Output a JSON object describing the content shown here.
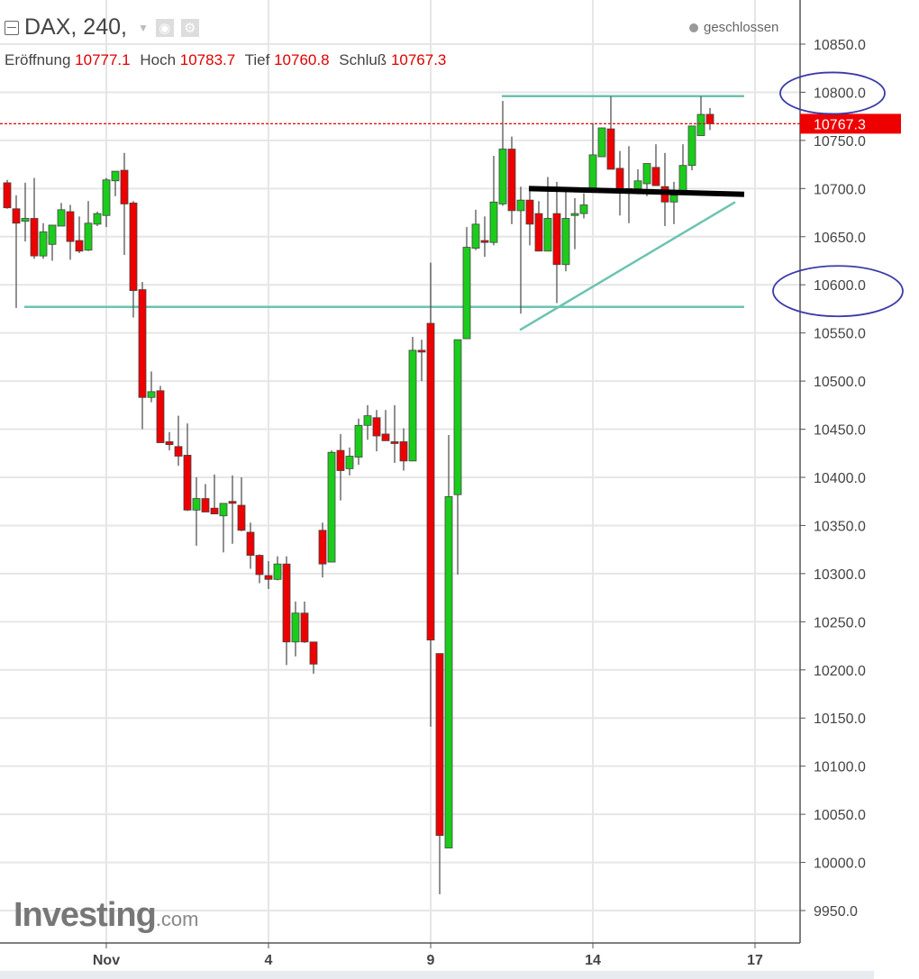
{
  "header": {
    "symbol_title": "DAX, 240,",
    "status": "geschlossen",
    "ohlc": [
      {
        "label": "Eröffnung",
        "value": "10777.1"
      },
      {
        "label": "Hoch",
        "value": "10783.7"
      },
      {
        "label": "Tief",
        "value": "10760.8"
      },
      {
        "label": "Schluß",
        "value": "10767.3"
      }
    ],
    "icons": [
      "collapse-icon",
      "dropdown-icon",
      "eye-icon",
      "gear-icon"
    ]
  },
  "watermark": "Investing.com",
  "colors": {
    "up": "#1ccc1c",
    "down": "#ee0000",
    "trendline": "#6cc3b0",
    "support": "#000000",
    "highlight": "#3a3aa8",
    "last_price": "#ee0000"
  },
  "chart_data": {
    "type": "candlestick",
    "title": "",
    "xlabel": "",
    "ylabel": "",
    "ylim": [
      9930,
      10890
    ],
    "grid": true,
    "yticks": [
      "10850.0",
      "10800.0",
      "10750.0",
      "10700.0",
      "10650.0",
      "10600.0",
      "10550.0",
      "10500.0",
      "10450.0",
      "10400.0",
      "10350.0",
      "10300.0",
      "10250.0",
      "10200.0",
      "10150.0",
      "10100.0",
      "10050.0",
      "10000.0",
      "9950.0"
    ],
    "xticks": [
      {
        "label": "Nov",
        "bar": 11
      },
      {
        "label": "4",
        "bar": 29
      },
      {
        "label": "9",
        "bar": 47
      },
      {
        "label": "14",
        "bar": 65
      },
      {
        "label": "17",
        "bar": 83
      }
    ],
    "last_price": "10767.3",
    "candles": [
      [
        10706,
        10709,
        10679,
        10680
      ],
      [
        10679,
        10693,
        10576,
        10664
      ],
      [
        10666,
        10706,
        10645,
        10669
      ],
      [
        10669,
        10711,
        10627,
        10630
      ],
      [
        10630,
        10664,
        10627,
        10655
      ],
      [
        10642,
        10662,
        10625,
        10662
      ],
      [
        10661,
        10685,
        10661,
        10678
      ],
      [
        10676,
        10683,
        10626,
        10645
      ],
      [
        10646,
        10671,
        10633,
        10635
      ],
      [
        10636,
        10687,
        10635,
        10664
      ],
      [
        10663,
        10676,
        10661,
        10674
      ],
      [
        10672,
        10711,
        10660,
        10709
      ],
      [
        10708,
        10718,
        10692,
        10718
      ],
      [
        10719,
        10737,
        10631,
        10684
      ],
      [
        10685,
        10687,
        10566,
        10594
      ],
      [
        10595,
        10603,
        10450,
        10483
      ],
      [
        10483,
        10510,
        10478,
        10489
      ],
      [
        10490,
        10495,
        10436,
        10436
      ],
      [
        10437,
        10447,
        10428,
        10434
      ],
      [
        10432,
        10464,
        10412,
        10422
      ],
      [
        10423,
        10456,
        10365,
        10366
      ],
      [
        10366,
        10400,
        10329,
        10378
      ],
      [
        10378,
        10393,
        10364,
        10364
      ],
      [
        10368,
        10403,
        10362,
        10362
      ],
      [
        10360,
        10373,
        10322,
        10373
      ],
      [
        10375,
        10402,
        10331,
        10373
      ],
      [
        10371,
        10400,
        10344,
        10345
      ],
      [
        10343,
        10353,
        10305,
        10319
      ],
      [
        10319,
        10320,
        10290,
        10299
      ],
      [
        10298,
        10313,
        10284,
        10294
      ],
      [
        10294,
        10318,
        10293,
        10310
      ],
      [
        10310,
        10318,
        10205,
        10229
      ],
      [
        10229,
        10271,
        10214,
        10259
      ],
      [
        10259,
        10271,
        10228,
        10229
      ],
      [
        10229,
        10229,
        10196,
        10206
      ],
      [
        10345,
        10353,
        10296,
        10310
      ],
      [
        10312,
        10428,
        10312,
        10426
      ],
      [
        10428,
        10445,
        10376,
        10407
      ],
      [
        10409,
        10431,
        10402,
        10422
      ],
      [
        10421,
        10461,
        10413,
        10454
      ],
      [
        10454,
        10475,
        10439,
        10464
      ],
      [
        10462,
        10470,
        10427,
        10443
      ],
      [
        10445,
        10470,
        10438,
        10438
      ],
      [
        10437,
        10475,
        10415,
        10436
      ],
      [
        10437,
        10451,
        10407,
        10417
      ],
      [
        10417,
        10546,
        10417,
        10532
      ],
      [
        10532,
        10543,
        10500,
        10531
      ],
      [
        10560,
        10623,
        10141,
        10231
      ],
      [
        10217,
        10217,
        9967,
        10028
      ],
      [
        10015,
        10444,
        10015,
        10380
      ],
      [
        10382,
        10543,
        10299,
        10543
      ],
      [
        10544,
        10660,
        10544,
        10639
      ],
      [
        10638,
        10678,
        10636,
        10663
      ],
      [
        10646,
        10671,
        10629,
        10644
      ],
      [
        10644,
        10734,
        10641,
        10686
      ],
      [
        10684,
        10791,
        10682,
        10741
      ],
      [
        10741,
        10754,
        10663,
        10677
      ],
      [
        10677,
        10702,
        10570,
        10688
      ],
      [
        10688,
        10697,
        10641,
        10663
      ],
      [
        10674,
        10687,
        10635,
        10635
      ],
      [
        10635,
        10712,
        10635,
        10669
      ],
      [
        10674,
        10707,
        10581,
        10621
      ],
      [
        10621,
        10697,
        10614,
        10669
      ],
      [
        10672,
        10690,
        10637,
        10674
      ],
      [
        10674,
        10695,
        10669,
        10683
      ],
      [
        10700,
        10768,
        10700,
        10735
      ],
      [
        10733,
        10763,
        10733,
        10763
      ],
      [
        10762,
        10796,
        10720,
        10720
      ],
      [
        10721,
        10739,
        10672,
        10698
      ],
      [
        10698,
        10744,
        10664,
        10700
      ],
      [
        10700,
        10720,
        10694,
        10708
      ],
      [
        10705,
        10726,
        10692,
        10726
      ],
      [
        10722,
        10746,
        10703,
        10703
      ],
      [
        10702,
        10737,
        10661,
        10686
      ],
      [
        10686,
        10707,
        10663,
        10693
      ],
      [
        10694,
        10746,
        10694,
        10724
      ],
      [
        10724,
        10765,
        10719,
        10765
      ],
      [
        10755,
        10796,
        10755,
        10777
      ],
      [
        10777.1,
        10783.7,
        10760.8,
        10767.3
      ]
    ],
    "candle_fields": [
      "open",
      "high",
      "low",
      "close"
    ],
    "annotations": {
      "lines": [
        {
          "kind": "horizontal",
          "color": "trendline",
          "from_bar": 1.9,
          "to_bar": 81.8,
          "price": 10577
        },
        {
          "kind": "horizontal",
          "color": "trendline",
          "from_bar": 54.9,
          "to_bar": 81.8,
          "price": 10796
        },
        {
          "kind": "diagonal",
          "color": "trendline",
          "from_bar": 56.9,
          "from_price": 10553,
          "to_bar": 80.8,
          "to_price": 10686
        },
        {
          "kind": "support",
          "color": "support",
          "from_bar": 57.9,
          "from_price": 10700,
          "to_bar": 81.8,
          "to_price": 10694
        }
      ],
      "highlighted_levels": [
        10800,
        10600
      ]
    }
  }
}
